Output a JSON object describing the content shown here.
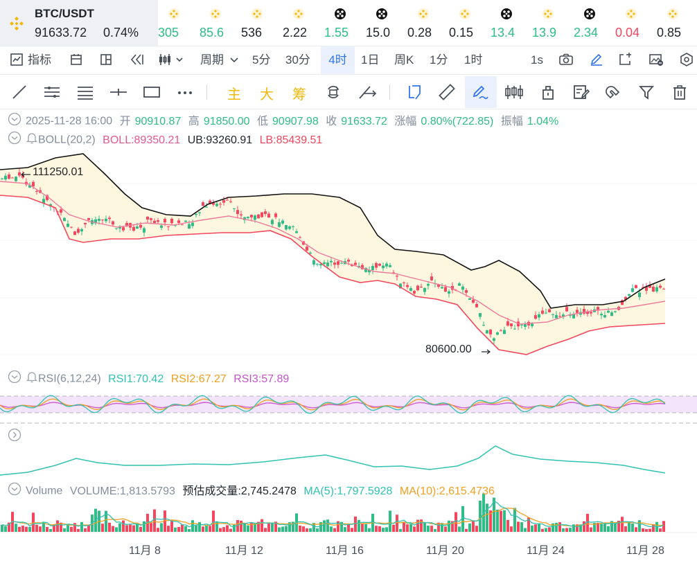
{
  "symbol": {
    "pair": "BTC/USDT",
    "price": "91633.72",
    "change": "0.74%",
    "icon": "binance-logo-icon"
  },
  "mini_tickers": [
    {
      "value": "305",
      "trend": "up",
      "icon": "binance-coin-icon"
    },
    {
      "value": "85.6",
      "trend": "up",
      "icon": "binance-coin-icon"
    },
    {
      "value": "536",
      "trend": "flat",
      "icon": "binance-coin-icon"
    },
    {
      "value": "2.22",
      "trend": "flat",
      "icon": "binance-coin-icon"
    },
    {
      "value": "1.55",
      "trend": "up",
      "icon": "black-token-icon"
    },
    {
      "value": "15.0",
      "trend": "flat",
      "icon": "black-token-icon"
    },
    {
      "value": "0.28",
      "trend": "flat",
      "icon": "binance-coin-icon"
    },
    {
      "value": "0.15",
      "trend": "flat",
      "icon": "binance-coin-icon"
    },
    {
      "value": "13.4",
      "trend": "up",
      "icon": "black-token-icon"
    },
    {
      "value": "13.9",
      "trend": "up",
      "icon": "binance-coin-icon"
    },
    {
      "value": "2.34",
      "trend": "up",
      "icon": "black-token-icon"
    },
    {
      "value": "0.04",
      "trend": "down",
      "icon": "binance-coin-icon"
    },
    {
      "value": "0.85",
      "trend": "flat",
      "icon": "binance-coin-icon"
    }
  ],
  "interval_bar": {
    "indicators_label": "指标",
    "period_label": "周期",
    "intervals": [
      "5分",
      "30分",
      "4时",
      "1日",
      "周K",
      "1分",
      "1时"
    ],
    "active_interval": "4时",
    "refresh_label": "1s"
  },
  "draw_bar": {
    "main_label": "主",
    "big_label": "大",
    "chip_label": "筹"
  },
  "ohlc": {
    "time": "2025-11-28 16:00",
    "open_label": "开",
    "open": "90910.87",
    "high_label": "高",
    "high": "91850.00",
    "low_label": "低",
    "low": "90907.98",
    "close_label": "收",
    "close": "91633.72",
    "change_label": "涨幅",
    "change": "0.80%(722.85)",
    "amp_label": "振幅",
    "amp": "1.04%"
  },
  "boll": {
    "name": "BOLL(20,2)",
    "mid": "BOLL:89350.21",
    "ub": "UB:93260.91",
    "lb": "LB:85439.51"
  },
  "rsi": {
    "name": "RSI(6,12,24)",
    "rsi1": "RSI1:70.42",
    "rsi2": "RSI2:67.27",
    "rsi3": "RSI3:57.89"
  },
  "volume": {
    "name": "Volume",
    "value": "VOLUME:1,813.5793",
    "estimated": "预估成交量:2,745.2478",
    "ma5": "MA(5):1,797.5928",
    "ma10": "MA(10):2,615.4736"
  },
  "price_marks": {
    "high": "111250.01",
    "low": "80600.00"
  },
  "x_axis_dates": [
    "11月 8",
    "11月 12",
    "11月 16",
    "11月 20",
    "11月 24",
    "11月 28"
  ],
  "colors": {
    "up": "#2ebd85",
    "down": "#f6465d",
    "accent": "#3174f1",
    "binance_yellow": "#f0b90b",
    "boll_mid": "#f07a9a",
    "boll_bands": "#f6465d"
  },
  "chart_data": {
    "type": "candlestick",
    "price_high": 111250.01,
    "price_low": 80600.0,
    "boll_mid": 89350.21,
    "boll_ub": 93260.91,
    "boll_lb": 85439.51,
    "dates": [
      "11月 8",
      "11月 12",
      "11月 16",
      "11月 20",
      "11月 24",
      "11月 28"
    ]
  }
}
